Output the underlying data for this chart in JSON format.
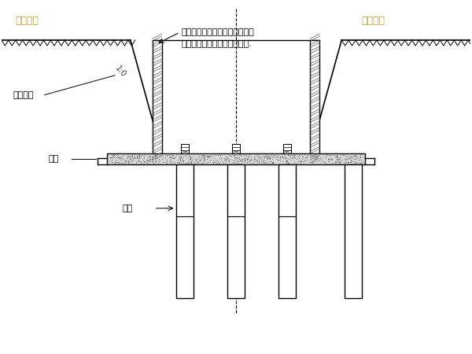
{
  "bg_color": "#ffffff",
  "line_color": "#000000",
  "label_color_gold": "#c8a030",
  "annotation_text1": "根据现场实际情况，木桩之间可",
  "annotation_text2": "采用铁丝相连，加强其整体性.",
  "label_kaijue": "开挖边线",
  "label_jikeng": "基坑边束",
  "label_muba": "木板",
  "label_muzhuang": "木桩",
  "label_slope": "1:0",
  "fig_width": 6.0,
  "fig_height": 4.5,
  "dpi": 100
}
